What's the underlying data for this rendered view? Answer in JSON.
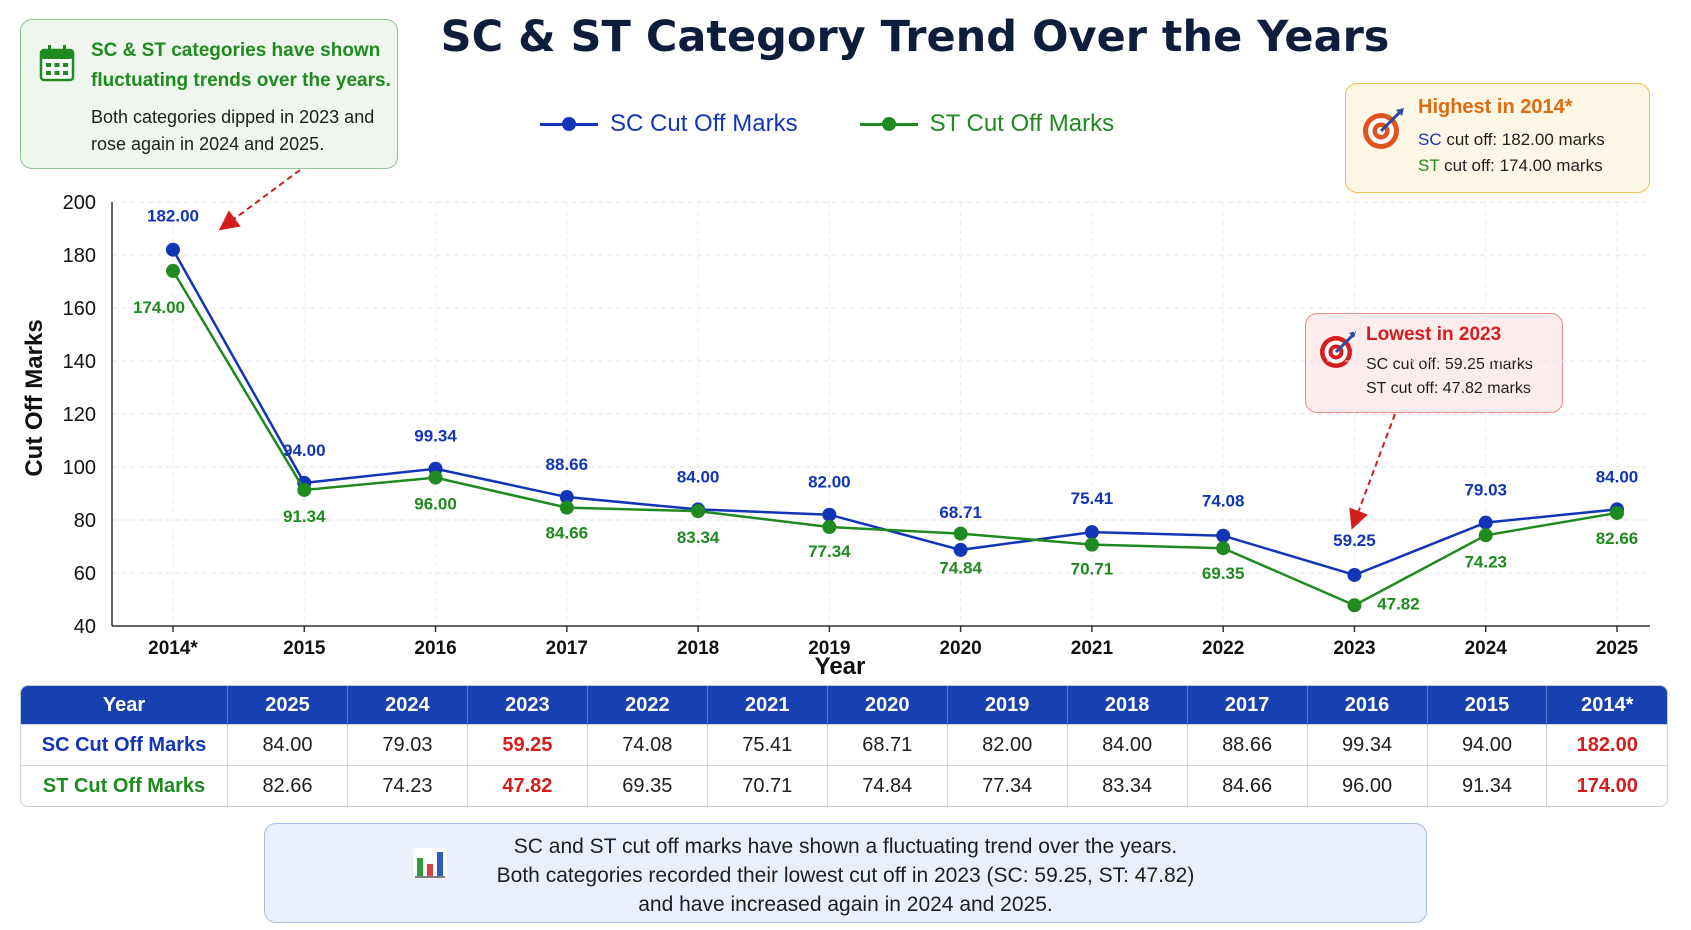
{
  "title": "SC & ST Category Trend Over the Years",
  "legend": {
    "sc": "SC Cut Off Marks",
    "st": "ST Cut Off Marks"
  },
  "colors": {
    "sc": "#1235b8",
    "st": "#1f8a1f",
    "highlight": "#d41e1e",
    "header": "#1740b0"
  },
  "callout_left": {
    "icon": "calendar-icon",
    "heading": "SC & ST categories have shown fluctuating trends over the years.",
    "body": "Both categories dipped in 2023 and rose again in 2024 and 2025."
  },
  "callout_high": {
    "icon": "target-icon",
    "heading": "Highest in 2014*",
    "sc_prefix": "SC",
    "sc_rest": " cut off: 182.00 marks",
    "st_prefix": "ST",
    "st_rest": " cut off: 174.00 marks"
  },
  "callout_low": {
    "icon": "target-icon",
    "heading": "Lowest in 2023",
    "sc_line": "SC cut off: 59.25 marks",
    "st_line": "ST cut off: 47.82 marks"
  },
  "chart_data": {
    "type": "line",
    "title": "SC & ST Category Trend Over the Years",
    "xlabel": "Year",
    "ylabel": "Cut Off Marks",
    "categories": [
      "2014*",
      "2015",
      "2016",
      "2017",
      "2018",
      "2019",
      "2020",
      "2021",
      "2022",
      "2023",
      "2024",
      "2025"
    ],
    "series": [
      {
        "name": "SC Cut Off Marks",
        "values": [
          182.0,
          94.0,
          99.34,
          88.66,
          84.0,
          82.0,
          68.71,
          75.41,
          74.08,
          59.25,
          79.03,
          84.0
        ]
      },
      {
        "name": "ST Cut Off Marks",
        "values": [
          174.0,
          91.34,
          96.0,
          84.66,
          83.34,
          77.34,
          74.84,
          70.71,
          69.35,
          47.82,
          74.23,
          82.66
        ]
      }
    ],
    "data_labels": {
      "sc": [
        "182.00",
        "94.00",
        "99.34",
        "88.66",
        "84.00",
        "82.00",
        "68.71",
        "75.41",
        "74.08",
        "59.25",
        "79.03",
        "84.00"
      ],
      "st": [
        "174.00",
        "91.34",
        "96.00",
        "84.66",
        "83.34",
        "77.34",
        "74.84",
        "70.71",
        "69.35",
        "47.82",
        "74.23",
        "82.66"
      ]
    },
    "ylim": [
      40,
      200
    ],
    "yticks": [
      40,
      60,
      80,
      100,
      120,
      140,
      160,
      180,
      200
    ],
    "grid": true,
    "legend_position": "top-center"
  },
  "table": {
    "headers": [
      "Year",
      "2025",
      "2024",
      "2023",
      "2022",
      "2021",
      "2020",
      "2019",
      "2018",
      "2017",
      "2016",
      "2015",
      "2014*"
    ],
    "rows": [
      {
        "label": "SC Cut Off Marks",
        "cells": [
          "84.00",
          "79.03",
          "59.25",
          "74.08",
          "75.41",
          "68.71",
          "82.00",
          "84.00",
          "88.66",
          "99.34",
          "94.00",
          "182.00"
        ]
      },
      {
        "label": "ST Cut Off Marks",
        "cells": [
          "82.66",
          "74.23",
          "47.82",
          "69.35",
          "70.71",
          "74.84",
          "77.34",
          "83.34",
          "84.66",
          "96.00",
          "91.34",
          "174.00"
        ]
      }
    ],
    "highlight_columns": [
      "2023",
      "2014*"
    ]
  },
  "summary": {
    "icon": "bar-chart-icon",
    "line1": "SC and ST cut off marks have shown a fluctuating trend over the years.",
    "line2": "Both categories recorded their lowest cut off in 2023 (SC: 59.25, ST: 47.82)",
    "line3": "and have increased again in 2024 and 2025."
  }
}
